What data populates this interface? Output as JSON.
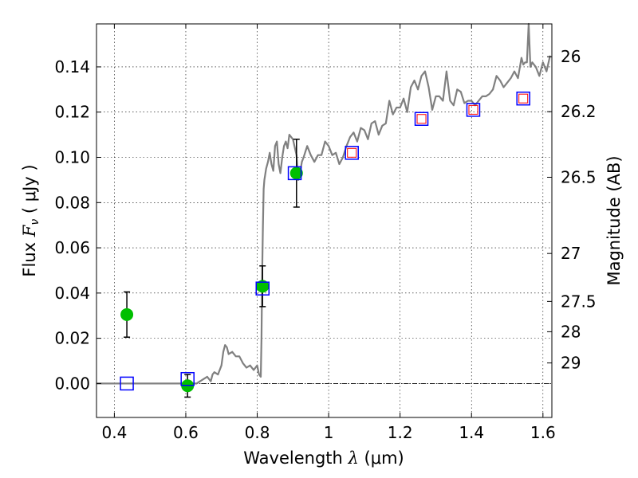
{
  "chart_data": {
    "type": "scatter",
    "xlabel_prefix": "Wavelength",
    "xlabel_symbol": "λ",
    "xlabel_unit": "(μm)",
    "ylabel_prefix": "Flux",
    "ylabel_symbol": "F",
    "ylabel_subscript": "ν",
    "ylabel_unit": "( μJy )",
    "y2label": "Magnitude (AB)",
    "xlim": [
      0.35,
      1.625
    ],
    "ylim": [
      -0.015,
      0.159
    ],
    "grid": true,
    "xticks": [
      0.4,
      0.6,
      0.8,
      1.0,
      1.2,
      1.4,
      1.6
    ],
    "xtick_labels": [
      "0.4",
      "0.6",
      "0.8",
      "1",
      "1.2",
      "1.4",
      "1.6"
    ],
    "yticks": [
      0.0,
      0.02,
      0.04,
      0.06,
      0.08,
      0.1,
      0.12,
      0.14
    ],
    "ytick_labels": [
      "0.00",
      "0.02",
      "0.04",
      "0.06",
      "0.08",
      "0.10",
      "0.12",
      "0.14"
    ],
    "y2ticks": [
      {
        "label": "26",
        "flux": 0.1445
      },
      {
        "label": "26.2",
        "flux": 0.1202
      },
      {
        "label": "26.5",
        "flux": 0.0912
      },
      {
        "label": "27",
        "flux": 0.0575
      },
      {
        "label": "27.5",
        "flux": 0.0363
      },
      {
        "label": "28",
        "flux": 0.0229
      },
      {
        "label": "29",
        "flux": 0.0091
      }
    ],
    "colors": {
      "model": "#808080",
      "observed": "#00bf00",
      "model_box": "#0000ff",
      "inner_box": "#ff0000",
      "errorbar": "#000000",
      "zero_line": "#000000"
    },
    "model_spectrum": {
      "x": [
        0.35,
        0.5,
        0.6,
        0.63,
        0.65,
        0.66,
        0.67,
        0.675,
        0.68,
        0.69,
        0.7,
        0.705,
        0.71,
        0.715,
        0.72,
        0.73,
        0.74,
        0.75,
        0.76,
        0.77,
        0.78,
        0.79,
        0.8,
        0.805,
        0.81,
        0.812,
        0.814,
        0.816,
        0.818,
        0.82,
        0.822,
        0.825,
        0.83,
        0.835,
        0.84,
        0.845,
        0.85,
        0.855,
        0.86,
        0.865,
        0.87,
        0.875,
        0.88,
        0.885,
        0.89,
        0.9,
        0.91,
        0.915,
        0.92,
        0.925,
        0.93,
        0.94,
        0.95,
        0.96,
        0.97,
        0.98,
        0.99,
        1.0,
        1.01,
        1.02,
        1.03,
        1.04,
        1.05,
        1.06,
        1.07,
        1.08,
        1.09,
        1.1,
        1.11,
        1.12,
        1.13,
        1.14,
        1.15,
        1.16,
        1.17,
        1.18,
        1.19,
        1.2,
        1.21,
        1.22,
        1.23,
        1.24,
        1.25,
        1.26,
        1.27,
        1.28,
        1.29,
        1.3,
        1.31,
        1.32,
        1.33,
        1.34,
        1.35,
        1.36,
        1.37,
        1.38,
        1.39,
        1.4,
        1.41,
        1.42,
        1.43,
        1.44,
        1.45,
        1.46,
        1.47,
        1.48,
        1.49,
        1.5,
        1.51,
        1.52,
        1.53,
        1.54,
        1.545,
        1.55,
        1.555,
        1.56,
        1.565,
        1.57,
        1.58,
        1.59,
        1.6,
        1.61,
        1.62
      ],
      "y": [
        0.0,
        0.0,
        0.0,
        0.0,
        0.002,
        0.003,
        0.001,
        0.004,
        0.005,
        0.004,
        0.008,
        0.014,
        0.017,
        0.016,
        0.013,
        0.014,
        0.012,
        0.012,
        0.009,
        0.007,
        0.008,
        0.006,
        0.008,
        0.004,
        0.003,
        0.02,
        0.05,
        0.07,
        0.086,
        0.09,
        0.092,
        0.095,
        0.098,
        0.102,
        0.097,
        0.094,
        0.105,
        0.107,
        0.097,
        0.093,
        0.1,
        0.105,
        0.107,
        0.104,
        0.11,
        0.108,
        0.101,
        0.09,
        0.093,
        0.098,
        0.1,
        0.105,
        0.101,
        0.098,
        0.101,
        0.101,
        0.107,
        0.105,
        0.101,
        0.102,
        0.097,
        0.1,
        0.105,
        0.109,
        0.111,
        0.107,
        0.113,
        0.112,
        0.108,
        0.115,
        0.116,
        0.11,
        0.114,
        0.115,
        0.125,
        0.119,
        0.122,
        0.122,
        0.126,
        0.12,
        0.131,
        0.134,
        0.13,
        0.136,
        0.138,
        0.131,
        0.121,
        0.127,
        0.127,
        0.125,
        0.138,
        0.125,
        0.123,
        0.13,
        0.129,
        0.124,
        0.125,
        0.125,
        0.123,
        0.125,
        0.127,
        0.127,
        0.128,
        0.13,
        0.136,
        0.134,
        0.131,
        0.133,
        0.135,
        0.138,
        0.135,
        0.144,
        0.141,
        0.142,
        0.142,
        0.159,
        0.14,
        0.142,
        0.14,
        0.136,
        0.142,
        0.138,
        0.145
      ]
    },
    "model_boxes": {
      "x": [
        0.435,
        0.605,
        0.815,
        0.905,
        1.065,
        1.26,
        1.405,
        1.545
      ],
      "y": [
        0.0,
        0.002,
        0.042,
        0.093,
        0.102,
        0.117,
        0.121,
        0.126
      ],
      "inner_red": [
        false,
        false,
        false,
        false,
        true,
        true,
        true,
        true
      ]
    },
    "observed": {
      "x": [
        0.435,
        0.605,
        0.815,
        0.91
      ],
      "y": [
        0.0305,
        -0.001,
        0.043,
        0.093
      ],
      "yerr": [
        0.01,
        0.005,
        0.009,
        0.015
      ]
    }
  }
}
